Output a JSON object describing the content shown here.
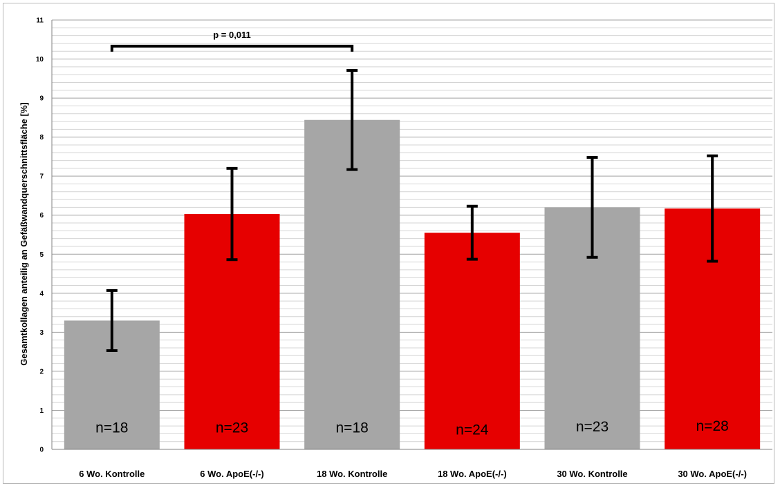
{
  "chart_data": {
    "type": "bar",
    "title": "",
    "xlabel": "",
    "ylabel": "Gesamtkollagen anteilig an Gefäßwandquerschnittsfläche  [%]",
    "ylim": [
      0,
      11
    ],
    "yticks": [
      0,
      1,
      2,
      3,
      4,
      5,
      6,
      7,
      8,
      9,
      10,
      11
    ],
    "minor_gridlines": 0.2,
    "grid": true,
    "legend": "none",
    "categories": [
      "6 Wo. Kontrolle",
      "6 Wo. ApoE(-/-)",
      "18 Wo. Kontrolle",
      "18 Wo. ApoE(-/-)",
      "30 Wo. Kontrolle",
      "30 Wo. ApoE(-/-)"
    ],
    "values": [
      3.3,
      6.03,
      8.44,
      5.55,
      6.2,
      6.17
    ],
    "error": [
      0.77,
      1.17,
      1.27,
      0.68,
      1.28,
      1.35
    ],
    "n_labels": [
      "n=18",
      "n=23",
      "n=18",
      "n=24",
      "n=23",
      "n=28"
    ],
    "n_label_y": [
      0.43,
      0.43,
      0.43,
      0.38,
      0.46,
      0.48
    ],
    "colors": [
      "#a6a6a6",
      "#e60000",
      "#a6a6a6",
      "#e60000",
      "#a6a6a6",
      "#e60000"
    ],
    "significance": [
      {
        "from": 0,
        "to": 2,
        "y": 10.33,
        "label": "p = 0,011"
      }
    ]
  }
}
